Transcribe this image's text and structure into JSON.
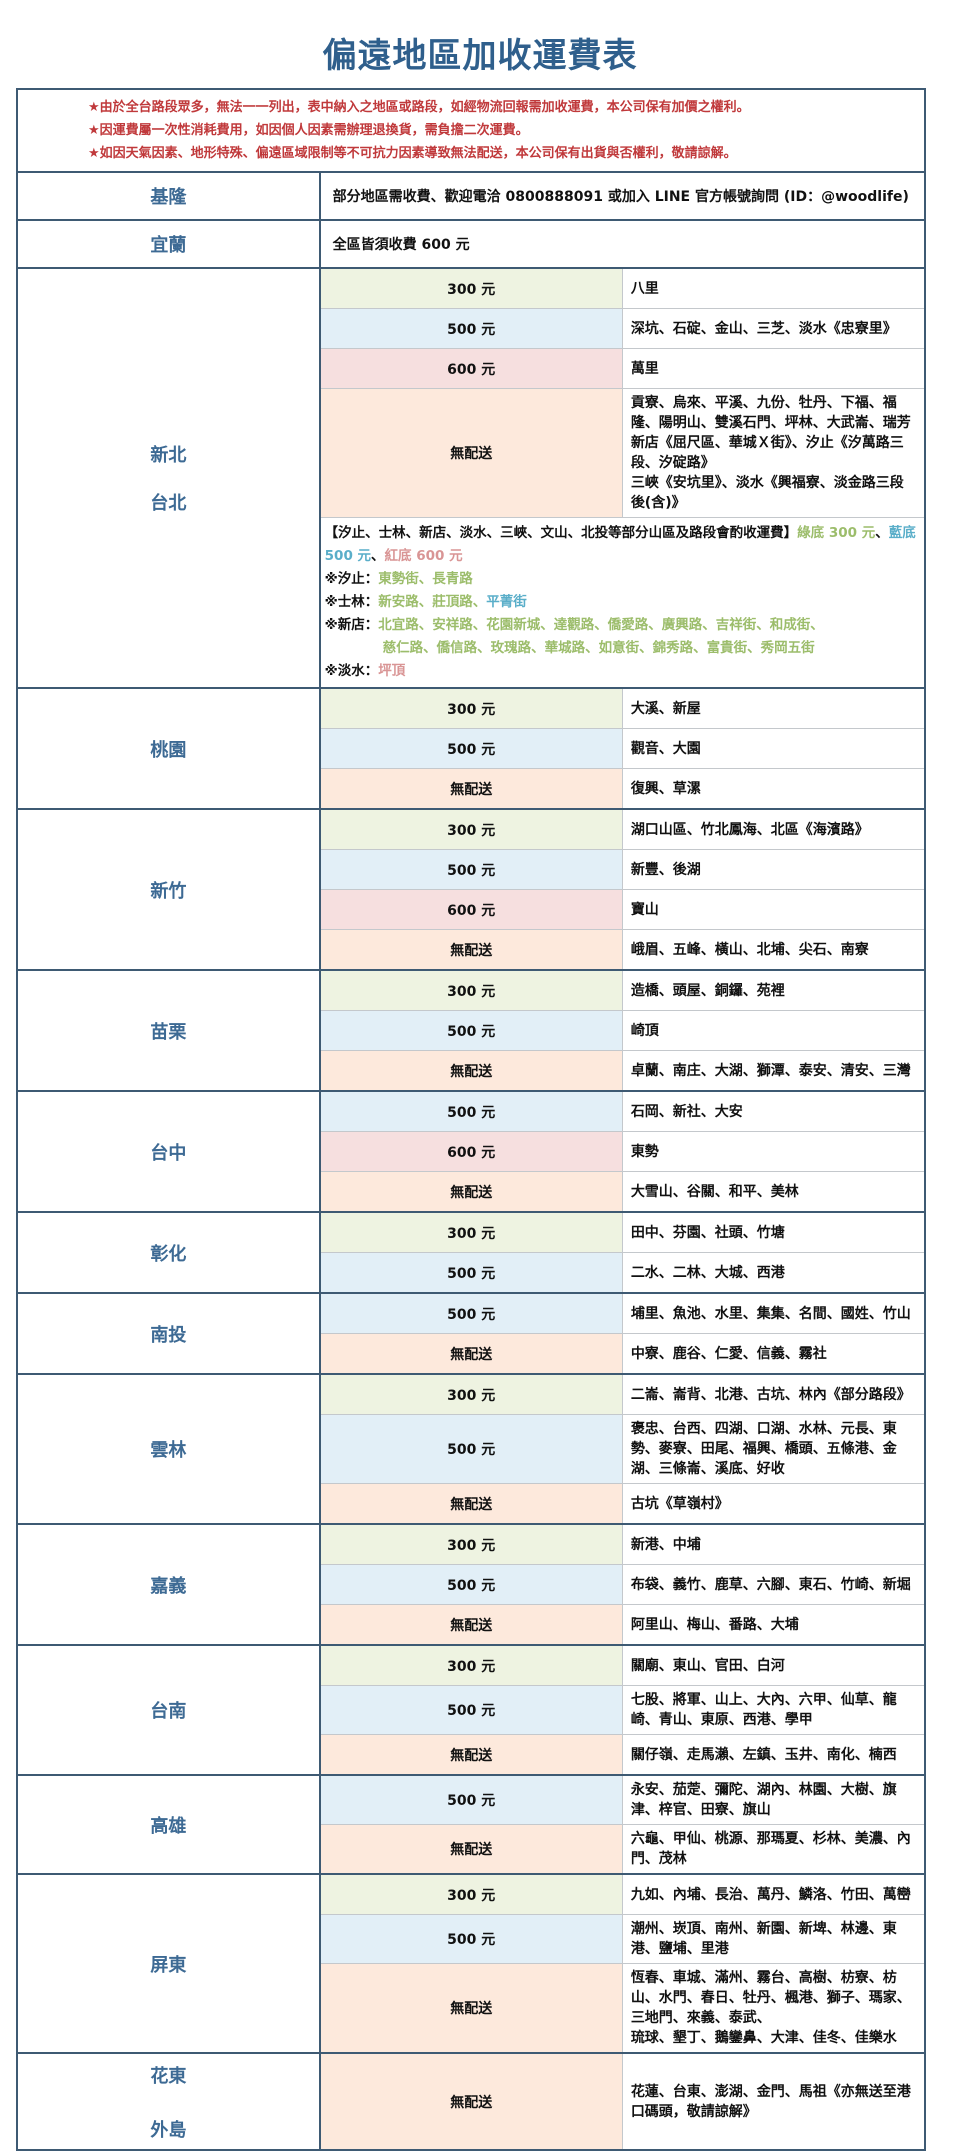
{
  "title": "偏遠地區加收運費表",
  "colors": {
    "title": "#2f5f8c",
    "border": "#3e5a73",
    "notes": "#c0393b",
    "green": "#9cbd6b",
    "blue": "#5aaec9",
    "red": "#d99595",
    "tier_bg": {
      "300 元": "#eef3e1",
      "500 元": "#e2eff7",
      "600 元": "#f6dfdf",
      "無配送": "#fde9dc"
    }
  },
  "notes": [
    "★由於全台路段眾多，無法一一列出，表中納入之地區或路段，如經物流回報需加收運費，本公司保有加價之權利。",
    "★因運費屬一次性消耗費用，如因個人因素需辦理退換貨，需負擔二次運費。",
    "★如因天氣因素、地形特殊、偏遠區域限制等不可抗力因素導致無法配送，本公司保有出貨與否權利，敬請諒解。"
  ],
  "regions": [
    {
      "name": [
        "基隆"
      ],
      "single": "部分地區需收費、歡迎電洽 0800888091 或加入 LINE 官方帳號詢問 (ID：@woodlife)"
    },
    {
      "name": [
        "宜蘭"
      ],
      "single": "全區皆須收費 600 元"
    },
    {
      "name": [
        "新北",
        "台北"
      ],
      "rows": [
        {
          "price": "300 元",
          "areas": [
            "八里"
          ]
        },
        {
          "price": "500 元",
          "areas": [
            "深坑、石碇、金山、三芝、淡水《忠寮里》"
          ]
        },
        {
          "price": "600 元",
          "areas": [
            "萬里"
          ]
        },
        {
          "price": "無配送",
          "areas": [
            "貢寮、烏來、平溪、九份、牡丹、下福、福隆、陽明山、雙溪石門、坪林、大武崙、瑞芳",
            "新店《屈尺區、華城Ｘ街》、汐止《汐萬路三段、汐碇路》",
            "三峽《安坑里》、淡水《興福寮、淡金路三段後(含)》"
          ]
        }
      ],
      "extra": {
        "lines": [
          [
            {
              "t": "【汐止、士林、新店、淡水、三峽、文山、北投等部分山區及路段會酌收運費】",
              "c": ""
            },
            {
              "t": "綠底 300 元",
              "c": "green"
            },
            {
              "t": "、",
              "c": ""
            },
            {
              "t": "藍底 500 元",
              "c": "blue"
            },
            {
              "t": "、",
              "c": ""
            },
            {
              "t": "紅底 600 元",
              "c": "red"
            }
          ],
          [
            {
              "t": "※汐止：",
              "c": ""
            },
            {
              "t": "東勢街、長青路",
              "c": "green"
            }
          ],
          [
            {
              "t": "※士林：",
              "c": ""
            },
            {
              "t": "新安路、莊頂路、",
              "c": "green"
            },
            {
              "t": "平菁街",
              "c": "blue"
            }
          ],
          [
            {
              "t": "※新店：",
              "c": ""
            },
            {
              "t": "北宜路、安祥路、花園新城、達觀路、僑愛路、廣興路、吉祥街、和成街、",
              "c": "green"
            }
          ],
          [
            {
              "t": "慈仁路、僑信路、玫瑰路、華城路、如意街、錦秀路、富貴街、秀岡五街",
              "c": "green",
              "indent": true
            }
          ],
          [
            {
              "t": "※淡水：",
              "c": ""
            },
            {
              "t": "坪頂",
              "c": "red"
            }
          ]
        ]
      }
    },
    {
      "name": [
        "桃園"
      ],
      "rows": [
        {
          "price": "300 元",
          "areas": [
            "大溪、新屋"
          ]
        },
        {
          "price": "500 元",
          "areas": [
            "觀音、大園"
          ]
        },
        {
          "price": "無配送",
          "areas": [
            "復興、草漯"
          ]
        }
      ]
    },
    {
      "name": [
        "新竹"
      ],
      "rows": [
        {
          "price": "300 元",
          "areas": [
            "湖口山區、竹北鳳海、北區《海濱路》"
          ]
        },
        {
          "price": "500 元",
          "areas": [
            "新豐、後湖"
          ]
        },
        {
          "price": "600 元",
          "areas": [
            "寶山"
          ]
        },
        {
          "price": "無配送",
          "areas": [
            "峨眉、五峰、橫山、北埔、尖石、南寮"
          ]
        }
      ]
    },
    {
      "name": [
        "苗栗"
      ],
      "rows": [
        {
          "price": "300 元",
          "areas": [
            "造橋、頭屋、銅鑼、苑裡"
          ]
        },
        {
          "price": "500 元",
          "areas": [
            "崎頂"
          ]
        },
        {
          "price": "無配送",
          "areas": [
            "卓蘭、南庄、大湖、獅潭、泰安、清安、三灣"
          ]
        }
      ]
    },
    {
      "name": [
        "台中"
      ],
      "rows": [
        {
          "price": "500 元",
          "areas": [
            "石岡、新社、大安"
          ]
        },
        {
          "price": "600 元",
          "areas": [
            "東勢"
          ]
        },
        {
          "price": "無配送",
          "areas": [
            "大雪山、谷關、和平、美林"
          ]
        }
      ]
    },
    {
      "name": [
        "彰化"
      ],
      "rows": [
        {
          "price": "300 元",
          "areas": [
            "田中、芬園、社頭、竹塘"
          ]
        },
        {
          "price": "500 元",
          "areas": [
            "二水、二林、大城、西港"
          ]
        }
      ]
    },
    {
      "name": [
        "南投"
      ],
      "rows": [
        {
          "price": "500 元",
          "areas": [
            "埔里、魚池、水里、集集、名間、國姓、竹山"
          ]
        },
        {
          "price": "無配送",
          "areas": [
            "中寮、鹿谷、仁愛、信義、霧社"
          ]
        }
      ]
    },
    {
      "name": [
        "雲林"
      ],
      "rows": [
        {
          "price": "300 元",
          "areas": [
            "二崙、崙背、北港、古坑、林內《部分路段》"
          ]
        },
        {
          "price": "500 元",
          "areas": [
            "褒忠、台西、四湖、口湖、水林、元長、東勢、麥寮、田尾、福興、橋頭、五條港、金湖、三條崙、溪底、好收"
          ]
        },
        {
          "price": "無配送",
          "areas": [
            "古坑《草嶺村》"
          ]
        }
      ]
    },
    {
      "name": [
        "嘉義"
      ],
      "rows": [
        {
          "price": "300 元",
          "areas": [
            "新港、中埔"
          ]
        },
        {
          "price": "500 元",
          "areas": [
            "布袋、義竹、鹿草、六腳、東石、竹崎、新堀"
          ]
        },
        {
          "price": "無配送",
          "areas": [
            "阿里山、梅山、番路、大埔"
          ]
        }
      ]
    },
    {
      "name": [
        "台南"
      ],
      "rows": [
        {
          "price": "300 元",
          "areas": [
            "關廟、東山、官田、白河"
          ]
        },
        {
          "price": "500 元",
          "areas": [
            "七股、將軍、山上、大內、六甲、仙草、龍崎、青山、東原、西港、學甲"
          ]
        },
        {
          "price": "無配送",
          "areas": [
            "關仔嶺、走馬瀨、左鎮、玉井、南化、楠西"
          ]
        }
      ]
    },
    {
      "name": [
        "高雄"
      ],
      "rows": [
        {
          "price": "500 元",
          "areas": [
            "永安、茄萣、彌陀、湖內、林園、大樹、旗津、梓官、田寮、旗山"
          ]
        },
        {
          "price": "無配送",
          "areas": [
            "六龜、甲仙、桃源、那瑪夏、杉林、美濃、內門、茂林"
          ]
        }
      ]
    },
    {
      "name": [
        "屏東"
      ],
      "rows": [
        {
          "price": "300 元",
          "areas": [
            "九如、內埔、長治、萬丹、鱗洛、竹田、萬巒"
          ]
        },
        {
          "price": "500 元",
          "areas": [
            "潮州、崁頂、南州、新園、新埤、林邊、東港、鹽埔、里港"
          ]
        },
        {
          "price": "無配送",
          "areas": [
            "恆春、車城、滿州、霧台、高樹、枋寮、枋山、水門、春日、牡丹、楓港、獅子、瑪家、三地門、來義、泰武、",
            "琉球、墾丁、鵝鑾鼻、大津、佳冬、佳樂水"
          ]
        }
      ]
    },
    {
      "name": [
        "花東",
        "外島"
      ],
      "tall": true,
      "rows": [
        {
          "price": "無配送",
          "areas": [
            "花蓮、台東、澎湖、金門、馬祖《亦無送至港口碼頭，敬請諒解》"
          ]
        }
      ]
    }
  ]
}
